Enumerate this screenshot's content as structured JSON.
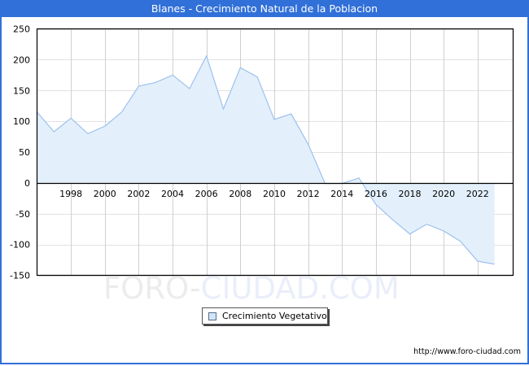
{
  "header": {
    "title": "Blanes - Crecimiento Natural de la Poblacion"
  },
  "legend": {
    "items": [
      {
        "label": "Crecimiento Vegetativo",
        "swatch_color": "#d2e6fa"
      }
    ]
  },
  "watermark": {
    "part1": "FORO-",
    "part2": "CIUDAD.COM",
    "color1": "#ececec",
    "color2": "#eaeefa"
  },
  "footer": {
    "source_url": "http://www.foro-ciudad.com"
  },
  "colors": {
    "frame": "#3170d8",
    "line": "#9ec1ec",
    "fill": "#e3f0fc",
    "grid": "#d0d0d0"
  },
  "chart_data": {
    "type": "area",
    "title": "Blanes - Crecimiento Natural de la Poblacion",
    "xlabel": "",
    "ylabel": "",
    "x": [
      1996,
      1997,
      1998,
      1999,
      2000,
      2001,
      2002,
      2003,
      2004,
      2005,
      2006,
      2007,
      2008,
      2009,
      2010,
      2011,
      2012,
      2013,
      2014,
      2015,
      2016,
      2017,
      2018,
      2019,
      2020,
      2021,
      2022,
      2023
    ],
    "series": [
      {
        "name": "Crecimiento Vegetativo",
        "values": [
          115,
          83,
          105,
          80,
          92,
          115,
          157,
          163,
          175,
          153,
          206,
          120,
          187,
          172,
          103,
          112,
          63,
          -1,
          -1,
          8,
          -35,
          -60,
          -83,
          -67,
          -78,
          -95,
          -127,
          -132
        ]
      }
    ],
    "ylim": [
      -150,
      250
    ],
    "yticks": [
      250,
      200,
      150,
      100,
      50,
      0,
      -50,
      -100,
      -150
    ],
    "xticks": [
      1998,
      2000,
      2002,
      2004,
      2006,
      2008,
      2010,
      2012,
      2014,
      2016,
      2018,
      2020,
      2022
    ],
    "xlim": [
      1996,
      2024.1
    ],
    "grid": true,
    "legend_position": "bottom-center"
  }
}
